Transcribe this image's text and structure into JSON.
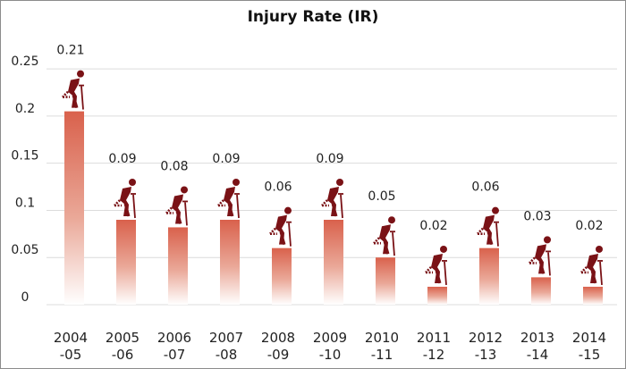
{
  "chart_data": {
    "type": "bar",
    "title": "Injury Rate (IR)",
    "xlabel": "",
    "ylabel": "",
    "categories": [
      [
        "2004",
        "-05"
      ],
      [
        "2005",
        "-06"
      ],
      [
        "2006",
        "-07"
      ],
      [
        "2007",
        "-08"
      ],
      [
        "2008",
        "-09"
      ],
      [
        "2009",
        "-10"
      ],
      [
        "2010",
        "-11"
      ],
      [
        "2011",
        "-12"
      ],
      [
        "2012",
        "-13"
      ],
      [
        "2013",
        "-14"
      ],
      [
        "2014",
        "-15"
      ]
    ],
    "values": [
      0.205,
      0.09,
      0.082,
      0.09,
      0.06,
      0.09,
      0.05,
      0.019,
      0.06,
      0.029,
      0.019
    ],
    "data_labels": [
      "0.21",
      "0.09",
      "0.08",
      "0.09",
      "0.06",
      "0.09",
      "0.05",
      "0.02",
      "0.06",
      "0.03",
      "0.02"
    ],
    "yticks": [
      0,
      0.05,
      0.1,
      0.15,
      0.2,
      0.25
    ],
    "ytick_labels": [
      "0",
      "0.05",
      "0.1",
      "0.15",
      "0.2",
      "0.25"
    ],
    "ylim": [
      0,
      0.27
    ],
    "grid": true,
    "legend": "none",
    "bar_color_top": "#d9614c",
    "bar_color_bottom": "#ffffff",
    "icon": "injured-worker-with-crutch-icon",
    "icon_color": "#7a1216",
    "grid_color": "#dcdcdc"
  }
}
